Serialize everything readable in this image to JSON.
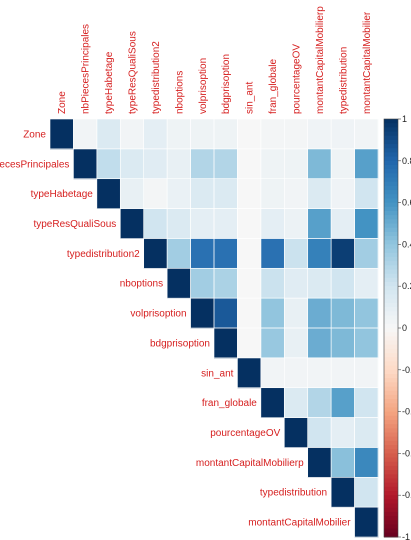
{
  "chart_data": {
    "type": "heatmap",
    "title": "",
    "variables": [
      "Zone",
      "nbPiecesPrincipales",
      "typeHabetage",
      "typeResQualiSous",
      "typedistribution2",
      "nboptions",
      "volprisoption",
      "bdgprisoption",
      "sin_ant",
      "fran_globale",
      "pourcentageOV",
      "montantCapitalMobilierp",
      "typedistribution",
      "montantCapitalMobilier"
    ],
    "matrix": [
      [
        1.0,
        0.03,
        0.15,
        0.03,
        0.1,
        0.05,
        0.05,
        0.05,
        0.0,
        0.02,
        0.02,
        0.04,
        0.04,
        0.03
      ],
      [
        0.03,
        1.0,
        0.25,
        0.15,
        0.12,
        0.08,
        0.3,
        0.3,
        0.0,
        0.05,
        0.05,
        0.45,
        0.05,
        0.55
      ],
      [
        0.15,
        0.25,
        1.0,
        0.08,
        0.02,
        0.07,
        0.15,
        0.15,
        0.0,
        0.05,
        0.03,
        0.15,
        0.04,
        0.2
      ],
      [
        0.03,
        0.15,
        0.08,
        1.0,
        0.2,
        0.15,
        0.1,
        0.1,
        0.0,
        0.1,
        0.06,
        0.55,
        0.1,
        0.6
      ],
      [
        0.1,
        0.12,
        0.02,
        0.2,
        1.0,
        0.35,
        0.75,
        0.75,
        0.0,
        0.75,
        0.22,
        0.68,
        0.95,
        0.35
      ],
      [
        0.05,
        0.08,
        0.07,
        0.15,
        0.35,
        1.0,
        0.35,
        0.32,
        0.0,
        0.22,
        0.12,
        0.15,
        0.2,
        0.1
      ],
      [
        0.05,
        0.3,
        0.15,
        0.1,
        0.75,
        0.35,
        1.0,
        0.85,
        0.0,
        0.4,
        0.08,
        0.5,
        0.45,
        0.4
      ],
      [
        0.05,
        0.3,
        0.15,
        0.1,
        0.75,
        0.32,
        0.85,
        1.0,
        0.0,
        0.38,
        0.08,
        0.5,
        0.45,
        0.4
      ],
      [
        0.0,
        0.0,
        0.0,
        0.0,
        0.0,
        0.0,
        0.0,
        0.0,
        1.0,
        0.03,
        0.03,
        0.03,
        0.03,
        0.03
      ],
      [
        0.02,
        0.05,
        0.05,
        0.1,
        0.75,
        0.22,
        0.4,
        0.38,
        0.03,
        1.0,
        0.15,
        0.3,
        0.55,
        0.2
      ],
      [
        0.02,
        0.05,
        0.03,
        0.06,
        0.22,
        0.12,
        0.08,
        0.08,
        0.03,
        0.15,
        1.0,
        0.2,
        0.1,
        0.15
      ],
      [
        0.04,
        0.45,
        0.15,
        0.55,
        0.68,
        0.15,
        0.5,
        0.5,
        0.03,
        0.3,
        0.2,
        1.0,
        0.42,
        0.65
      ],
      [
        0.04,
        0.05,
        0.04,
        0.1,
        0.95,
        0.2,
        0.45,
        0.45,
        0.03,
        0.55,
        0.1,
        0.42,
        1.0,
        0.2
      ],
      [
        0.03,
        0.55,
        0.2,
        0.6,
        0.35,
        0.1,
        0.4,
        0.4,
        0.03,
        0.2,
        0.15,
        0.65,
        0.2,
        1.0
      ]
    ],
    "triangle": "upper",
    "colorbar": {
      "range": [
        -1,
        1
      ],
      "ticks": [
        1,
        0.8,
        0.6,
        0.4,
        0.2,
        0,
        -0.2,
        -0.4,
        -0.6,
        -0.8,
        -1
      ],
      "tick_labels": [
        "1",
        "0.8",
        "0.6",
        "0.4",
        "0.2",
        "0",
        "-0.2",
        "-0.4",
        "-0.6",
        "-0.8",
        "-1"
      ],
      "colors": {
        "negative": "#67001f",
        "zero": "#f7f7f7",
        "positive": "#053061"
      }
    },
    "label_color": "#d62020"
  }
}
